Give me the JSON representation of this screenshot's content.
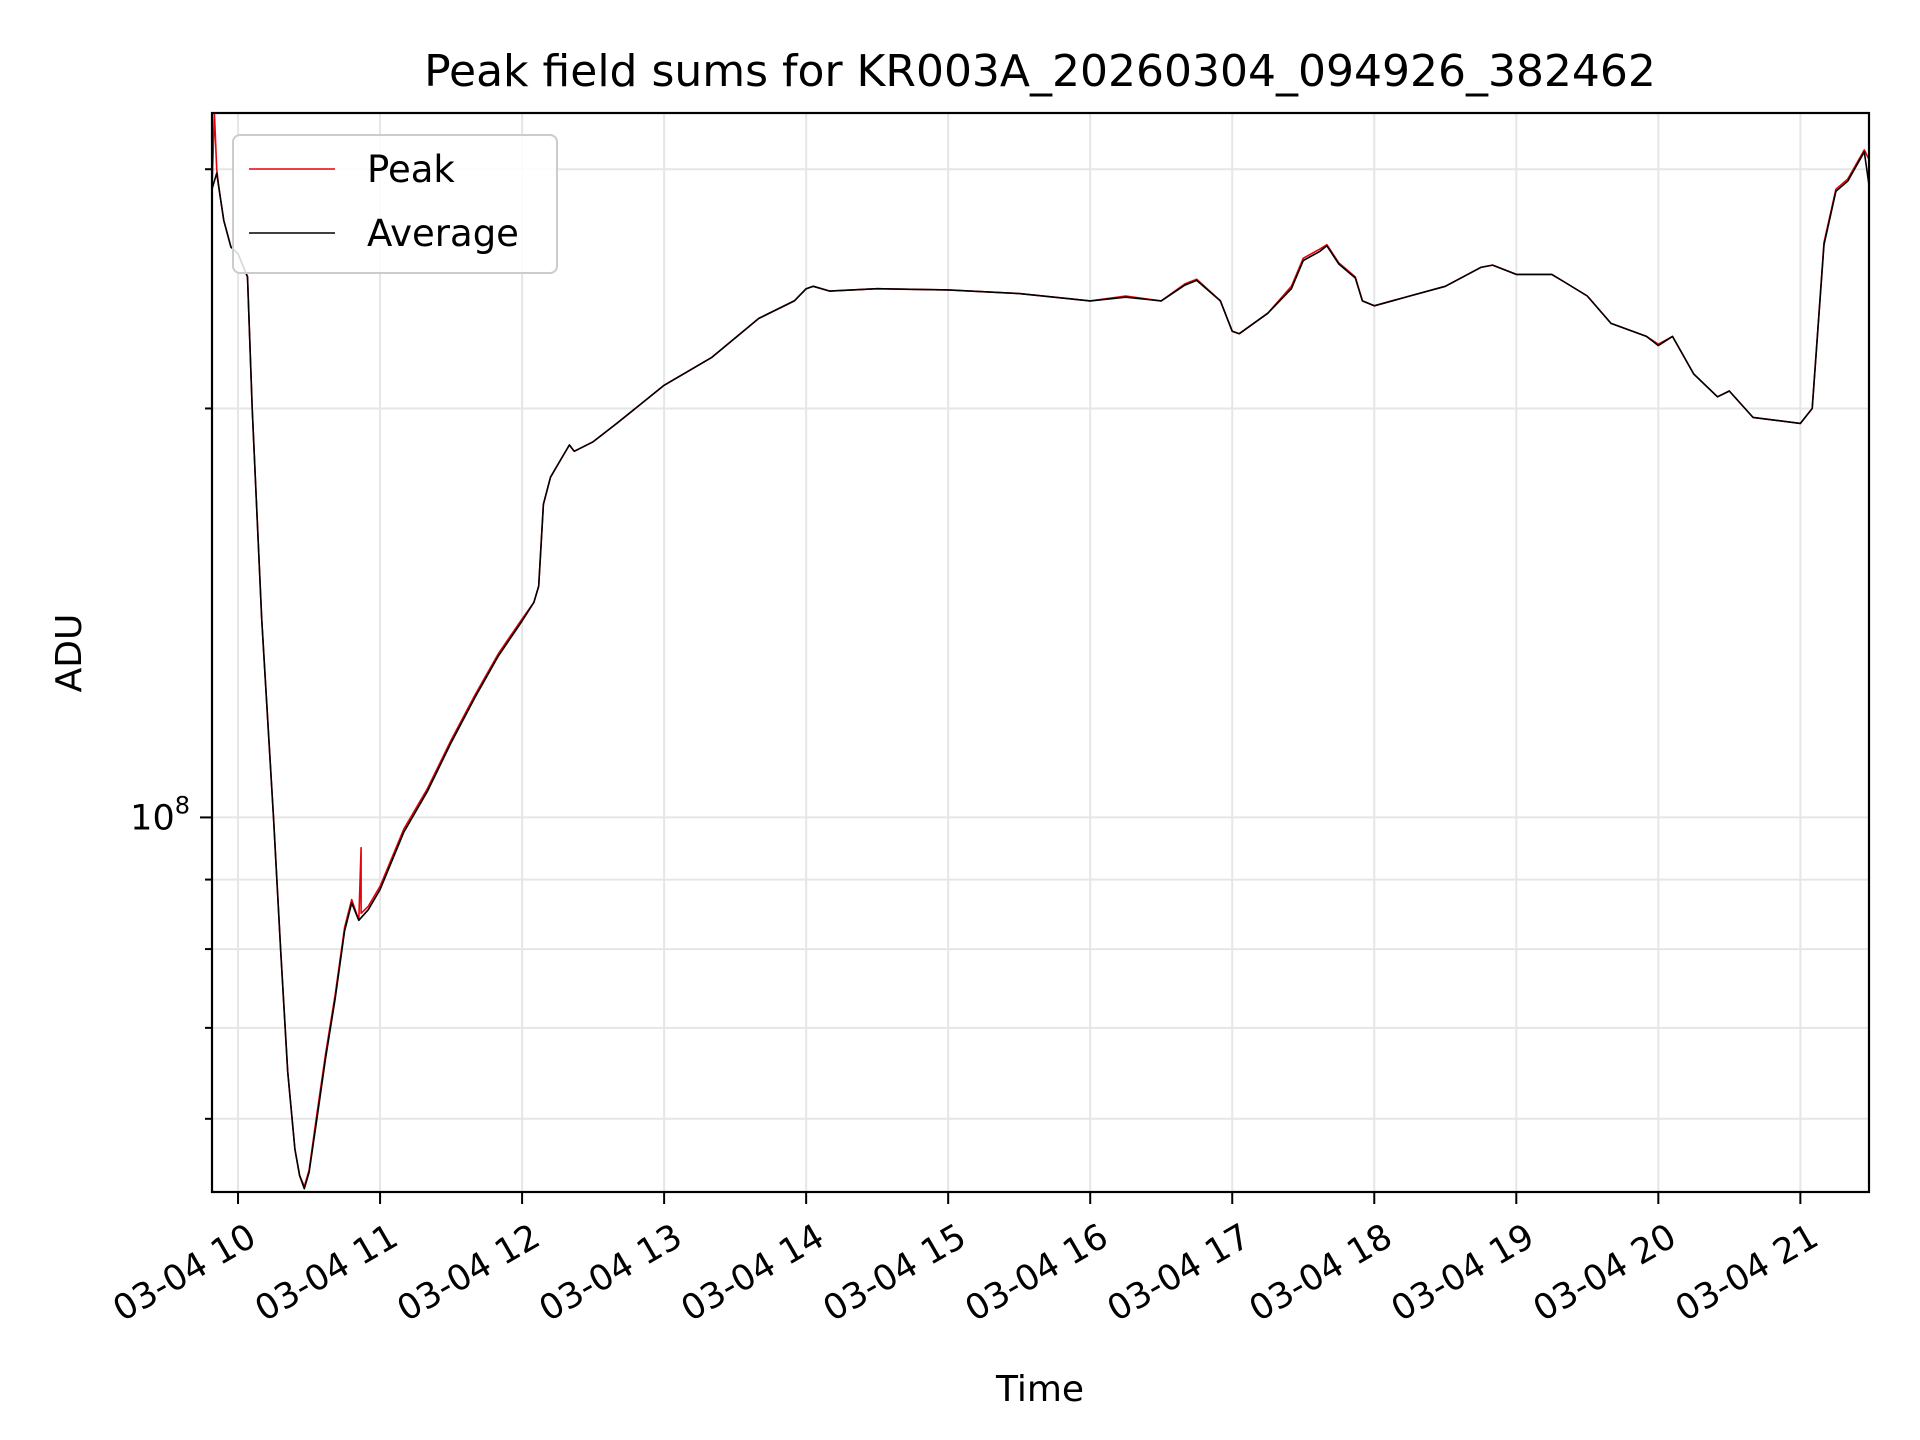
{
  "chart_data": {
    "type": "line",
    "title": "Peak field sums for KR003A_20260304_094926_382462",
    "xlabel": "Time",
    "ylabel": "ADU",
    "y_scale": "log",
    "grid": true,
    "legend_position": "top-left",
    "x_range": [
      "03-04 09:49",
      "03-04 21:29"
    ],
    "ylim": [
      53000000,
      330000000
    ],
    "x_tick_labels": [
      "03-04 10",
      "03-04 11",
      "03-04 12",
      "03-04 13",
      "03-04 14",
      "03-04 15",
      "03-04 16",
      "03-04 17",
      "03-04 18",
      "03-04 19",
      "03-04 20",
      "03-04 21"
    ],
    "x_ticks": [
      "03-04 10:00",
      "03-04 11:00",
      "03-04 12:00",
      "03-04 13:00",
      "03-04 14:00",
      "03-04 15:00",
      "03-04 16:00",
      "03-04 17:00",
      "03-04 18:00",
      "03-04 19:00",
      "03-04 20:00",
      "03-04 21:00"
    ],
    "y_major_ticks": [
      {
        "value": 100000000,
        "base": "10",
        "exponent": "8"
      }
    ],
    "y_minor_ticks": [
      60000000,
      70000000,
      80000000,
      90000000,
      200000000,
      300000000
    ],
    "series": [
      {
        "name": "Peak",
        "color": "#e8000b",
        "points": [
          [
            "03-04 09:49",
            290000000
          ],
          [
            "03-04 09:50",
            330000000
          ],
          [
            "03-04 09:51",
            300000000
          ],
          [
            "03-04 09:52",
            290000000
          ],
          [
            "03-04 09:54",
            275000000
          ],
          [
            "03-04 09:57",
            263000000
          ],
          [
            "03-04 10:00",
            260000000
          ],
          [
            "03-04 10:04",
            250000000
          ],
          [
            "03-04 10:06",
            200000000
          ],
          [
            "03-04 10:10",
            140000000
          ],
          [
            "03-04 10:15",
            100000000
          ],
          [
            "03-04 10:18",
            80000000
          ],
          [
            "03-04 10:21",
            65000000
          ],
          [
            "03-04 10:24",
            57000000
          ],
          [
            "03-04 10:26",
            54500000
          ],
          [
            "03-04 10:28",
            53500000
          ],
          [
            "03-04 10:30",
            55000000
          ],
          [
            "03-04 10:33",
            60000000
          ],
          [
            "03-04 10:37",
            67000000
          ],
          [
            "03-04 10:41",
            74000000
          ],
          [
            "03-04 10:45",
            83000000
          ],
          [
            "03-04 10:48",
            87000000
          ],
          [
            "03-04 10:51",
            84000000
          ],
          [
            "03-04 10:52",
            95000000
          ],
          [
            "03-04 10:52",
            85000000
          ],
          [
            "03-04 10:55",
            86000000
          ],
          [
            "03-04 11:00",
            89000000
          ],
          [
            "03-04 11:10",
            98000000
          ],
          [
            "03-04 11:20",
            105000000
          ],
          [
            "03-04 11:30",
            114000000
          ],
          [
            "03-04 11:40",
            123000000
          ],
          [
            "03-04 11:50",
            132000000
          ],
          [
            "03-04 12:00",
            140000000
          ],
          [
            "03-04 12:05",
            144000000
          ],
          [
            "03-04 12:07",
            148000000
          ],
          [
            "03-04 12:09",
            170000000
          ],
          [
            "03-04 12:12",
            178000000
          ],
          [
            "03-04 12:16",
            183000000
          ],
          [
            "03-04 12:20",
            188000000
          ],
          [
            "03-04 12:22",
            186000000
          ],
          [
            "03-04 12:30",
            189000000
          ],
          [
            "03-04 12:40",
            195000000
          ],
          [
            "03-04 13:00",
            208000000
          ],
          [
            "03-04 13:20",
            218000000
          ],
          [
            "03-04 13:40",
            233000000
          ],
          [
            "03-04 13:55",
            240000000
          ],
          [
            "03-04 14:00",
            245000000
          ],
          [
            "03-04 14:03",
            246000000
          ],
          [
            "03-04 14:10",
            244000000
          ],
          [
            "03-04 14:30",
            245000000
          ],
          [
            "03-04 15:00",
            244500000
          ],
          [
            "03-04 15:30",
            243000000
          ],
          [
            "03-04 15:50",
            241000000
          ],
          [
            "03-04 16:00",
            240000000
          ],
          [
            "03-04 16:15",
            242000000
          ],
          [
            "03-04 16:30",
            240000000
          ],
          [
            "03-04 16:40",
            247000000
          ],
          [
            "03-04 16:45",
            249000000
          ],
          [
            "03-04 16:55",
            240000000
          ],
          [
            "03-04 17:00",
            228000000
          ],
          [
            "03-04 17:03",
            227000000
          ],
          [
            "03-04 17:15",
            235000000
          ],
          [
            "03-04 17:25",
            246000000
          ],
          [
            "03-04 17:30",
            258000000
          ],
          [
            "03-04 17:37",
            262000000
          ],
          [
            "03-04 17:40",
            264000000
          ],
          [
            "03-04 17:45",
            256000000
          ],
          [
            "03-04 17:52",
            250000000
          ],
          [
            "03-04 17:55",
            240000000
          ],
          [
            "03-04 18:00",
            238000000
          ],
          [
            "03-04 18:15",
            242000000
          ],
          [
            "03-04 18:30",
            246000000
          ],
          [
            "03-04 18:45",
            254000000
          ],
          [
            "03-04 18:50",
            255000000
          ],
          [
            "03-04 19:00",
            251000000
          ],
          [
            "03-04 19:15",
            251000000
          ],
          [
            "03-04 19:20",
            248000000
          ],
          [
            "03-04 19:30",
            242000000
          ],
          [
            "03-04 19:40",
            231000000
          ],
          [
            "03-04 19:55",
            226000000
          ],
          [
            "03-04 20:00",
            223000000
          ],
          [
            "03-04 20:06",
            226000000
          ],
          [
            "03-04 20:15",
            212000000
          ],
          [
            "03-04 20:25",
            204000000
          ],
          [
            "03-04 20:30",
            206000000
          ],
          [
            "03-04 20:40",
            197000000
          ],
          [
            "03-04 20:50",
            196000000
          ],
          [
            "03-04 21:00",
            195000000
          ],
          [
            "03-04 21:05",
            200000000
          ],
          [
            "03-04 21:10",
            265000000
          ],
          [
            "03-04 21:15",
            290000000
          ],
          [
            "03-04 21:20",
            295000000
          ],
          [
            "03-04 21:27",
            310000000
          ],
          [
            "03-04 21:29",
            305000000
          ]
        ]
      },
      {
        "name": "Average",
        "color": "#000000",
        "points": [
          [
            "03-04 09:49",
            290000000
          ],
          [
            "03-04 09:51",
            298000000
          ],
          [
            "03-04 09:52",
            290000000
          ],
          [
            "03-04 09:54",
            275000000
          ],
          [
            "03-04 09:57",
            263000000
          ],
          [
            "03-04 10:00",
            260000000
          ],
          [
            "03-04 10:04",
            250000000
          ],
          [
            "03-04 10:06",
            200000000
          ],
          [
            "03-04 10:10",
            140000000
          ],
          [
            "03-04 10:15",
            100000000
          ],
          [
            "03-04 10:18",
            80000000
          ],
          [
            "03-04 10:21",
            65000000
          ],
          [
            "03-04 10:24",
            57000000
          ],
          [
            "03-04 10:26",
            54500000
          ],
          [
            "03-04 10:28",
            53300000
          ],
          [
            "03-04 10:30",
            54800000
          ],
          [
            "03-04 10:33",
            59500000
          ],
          [
            "03-04 10:37",
            66500000
          ],
          [
            "03-04 10:41",
            73500000
          ],
          [
            "03-04 10:45",
            82500000
          ],
          [
            "03-04 10:48",
            86500000
          ],
          [
            "03-04 10:51",
            84000000
          ],
          [
            "03-04 10:55",
            85500000
          ],
          [
            "03-04 11:00",
            88500000
          ],
          [
            "03-04 11:10",
            97500000
          ],
          [
            "03-04 11:20",
            104500000
          ],
          [
            "03-04 11:30",
            113500000
          ],
          [
            "03-04 11:40",
            122500000
          ],
          [
            "03-04 11:50",
            131500000
          ],
          [
            "03-04 12:00",
            139500000
          ],
          [
            "03-04 12:05",
            144000000
          ],
          [
            "03-04 12:07",
            148000000
          ],
          [
            "03-04 12:09",
            170000000
          ],
          [
            "03-04 12:12",
            178000000
          ],
          [
            "03-04 12:16",
            183000000
          ],
          [
            "03-04 12:20",
            188000000
          ],
          [
            "03-04 12:22",
            186000000
          ],
          [
            "03-04 12:30",
            189000000
          ],
          [
            "03-04 12:40",
            195000000
          ],
          [
            "03-04 13:00",
            208000000
          ],
          [
            "03-04 13:20",
            218000000
          ],
          [
            "03-04 13:40",
            233000000
          ],
          [
            "03-04 13:55",
            240000000
          ],
          [
            "03-04 14:00",
            245000000
          ],
          [
            "03-04 14:03",
            246000000
          ],
          [
            "03-04 14:10",
            244000000
          ],
          [
            "03-04 14:30",
            245000000
          ],
          [
            "03-04 15:00",
            244500000
          ],
          [
            "03-04 15:30",
            243000000
          ],
          [
            "03-04 15:50",
            241000000
          ],
          [
            "03-04 16:00",
            240000000
          ],
          [
            "03-04 16:15",
            241500000
          ],
          [
            "03-04 16:30",
            240000000
          ],
          [
            "03-04 16:40",
            246500000
          ],
          [
            "03-04 16:45",
            248500000
          ],
          [
            "03-04 16:55",
            240000000
          ],
          [
            "03-04 17:00",
            228000000
          ],
          [
            "03-04 17:03",
            227000000
          ],
          [
            "03-04 17:15",
            235000000
          ],
          [
            "03-04 17:25",
            245000000
          ],
          [
            "03-04 17:30",
            257000000
          ],
          [
            "03-04 17:37",
            261000000
          ],
          [
            "03-04 17:40",
            263500000
          ],
          [
            "03-04 17:45",
            255500000
          ],
          [
            "03-04 17:52",
            249500000
          ],
          [
            "03-04 17:55",
            240000000
          ],
          [
            "03-04 18:00",
            238000000
          ],
          [
            "03-04 18:15",
            242000000
          ],
          [
            "03-04 18:30",
            246000000
          ],
          [
            "03-04 18:45",
            254000000
          ],
          [
            "03-04 18:50",
            255000000
          ],
          [
            "03-04 19:00",
            251000000
          ],
          [
            "03-04 19:15",
            251000000
          ],
          [
            "03-04 19:20",
            248000000
          ],
          [
            "03-04 19:30",
            242000000
          ],
          [
            "03-04 19:40",
            231000000
          ],
          [
            "03-04 19:55",
            226000000
          ],
          [
            "03-04 20:00",
            222500000
          ],
          [
            "03-04 20:06",
            226000000
          ],
          [
            "03-04 20:15",
            212000000
          ],
          [
            "03-04 20:25",
            204000000
          ],
          [
            "03-04 20:30",
            206000000
          ],
          [
            "03-04 20:40",
            197000000
          ],
          [
            "03-04 20:50",
            196000000
          ],
          [
            "03-04 21:00",
            195000000
          ],
          [
            "03-04 21:05",
            200000000
          ],
          [
            "03-04 21:10",
            264000000
          ],
          [
            "03-04 21:15",
            289000000
          ],
          [
            "03-04 21:20",
            294000000
          ],
          [
            "03-04 21:27",
            309000000
          ],
          [
            "03-04 21:29",
            292000000
          ]
        ]
      }
    ]
  }
}
